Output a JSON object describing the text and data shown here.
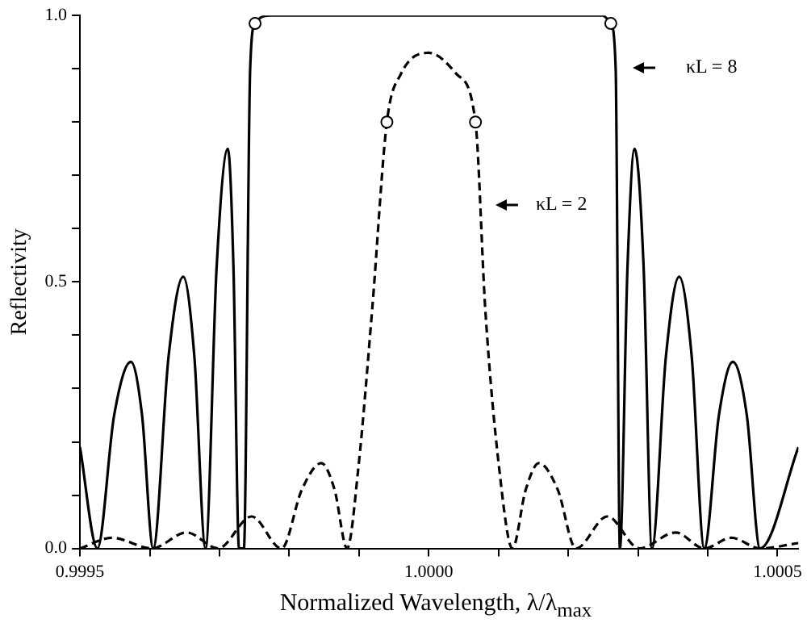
{
  "chart_data": {
    "type": "line",
    "xlabel": "Normalized  Wavelength, λ/λ$_{max}$",
    "ylabel": "Reflectivity",
    "xlim": [
      0.9995,
      1.00053
    ],
    "ylim": [
      0,
      1
    ],
    "xticks": [
      {
        "value": 0.9995,
        "label": "0.9995"
      },
      {
        "value": 0.9996,
        "label": null
      },
      {
        "value": 0.9997,
        "label": null
      },
      {
        "value": 0.9998,
        "label": null
      },
      {
        "value": 0.9999,
        "label": null
      },
      {
        "value": 1,
        "label": "1.0000"
      },
      {
        "value": 1.0001,
        "label": null
      },
      {
        "value": 1.0002,
        "label": null
      },
      {
        "value": 1.0003,
        "label": null
      },
      {
        "value": 1.0004,
        "label": null
      },
      {
        "value": 1.0005,
        "label": "1.0005"
      }
    ],
    "yticks": [
      {
        "value": 0,
        "label": "0.0"
      },
      {
        "value": 0.1,
        "label": null
      },
      {
        "value": 0.2,
        "label": null
      },
      {
        "value": 0.3,
        "label": null
      },
      {
        "value": 0.4,
        "label": null
      },
      {
        "value": 0.5,
        "label": "0.5"
      },
      {
        "value": 0.6,
        "label": null
      },
      {
        "value": 0.7,
        "label": null
      },
      {
        "value": 0.8,
        "label": null
      },
      {
        "value": 0.9,
        "label": null
      },
      {
        "value": 1,
        "label": "1.0"
      }
    ],
    "grid": false,
    "legend": false,
    "series": [
      {
        "line_style": "solid",
        "color": "#000000",
        "x": [
          0.9995,
          0.999525,
          0.999549,
          0.999573,
          0.999589,
          0.999605,
          0.999627,
          0.999648,
          0.999664,
          0.99968,
          0.999696,
          0.999712,
          0.99972,
          0.999728,
          0.999735,
          0.999744,
          0.999751,
          0.999773,
          1.000249,
          1.000261,
          1.000268,
          1.000274,
          1.000285,
          1.000295,
          1.000308,
          1.00032,
          1.00034,
          1.000359,
          1.000377,
          1.000395,
          1.000416,
          1.000436,
          1.000456,
          1.000475,
          1.00053
        ],
        "values": [
          0.19,
          0,
          0.25,
          0.35,
          0.25,
          0,
          0.36,
          0.51,
          0.36,
          0,
          0.53,
          0.75,
          0.53,
          0,
          0,
          0.9,
          0.985,
          1,
          1,
          0.985,
          0.9,
          0,
          0.53,
          0.75,
          0.53,
          0,
          0.36,
          0.51,
          0.36,
          0,
          0.25,
          0.35,
          0.25,
          0,
          0.19
        ]
      },
      {
        "line_style": "dashed",
        "color": "#000000",
        "x": [
          0.9995,
          0.999546,
          0.999603,
          0.999653,
          0.999698,
          0.999746,
          0.999789,
          0.999818,
          0.999846,
          0.999865,
          0.999883,
          0.999899,
          0.999919,
          0.99994,
          0.99996,
          1,
          1.00004,
          1.000067,
          1.000081,
          1.000101,
          1.00012,
          1.000139,
          1.000158,
          1.000185,
          1.000211,
          1.000256,
          1.000302,
          1.000354,
          1.000395,
          1.000434,
          1.000475,
          1.00053
        ],
        "values": [
          0,
          0.02,
          0,
          0.03,
          0,
          0.06,
          0,
          0.11,
          0.16,
          0.11,
          0,
          0.15,
          0.45,
          0.8,
          0.89,
          0.93,
          0.89,
          0.8,
          0.45,
          0.15,
          0,
          0.11,
          0.16,
          0.11,
          0,
          0.06,
          0,
          0.03,
          0,
          0.02,
          0,
          0.01
        ]
      },
      {
        "type": "scatter",
        "marker": "circle",
        "color": "#000000",
        "x": [
          0.999751,
          1.000261,
          0.99994,
          1.000067
        ],
        "values": [
          0.985,
          0.985,
          0.8,
          0.8
        ]
      }
    ],
    "annotations": [
      "κL = 8",
      "κL = 2"
    ]
  }
}
